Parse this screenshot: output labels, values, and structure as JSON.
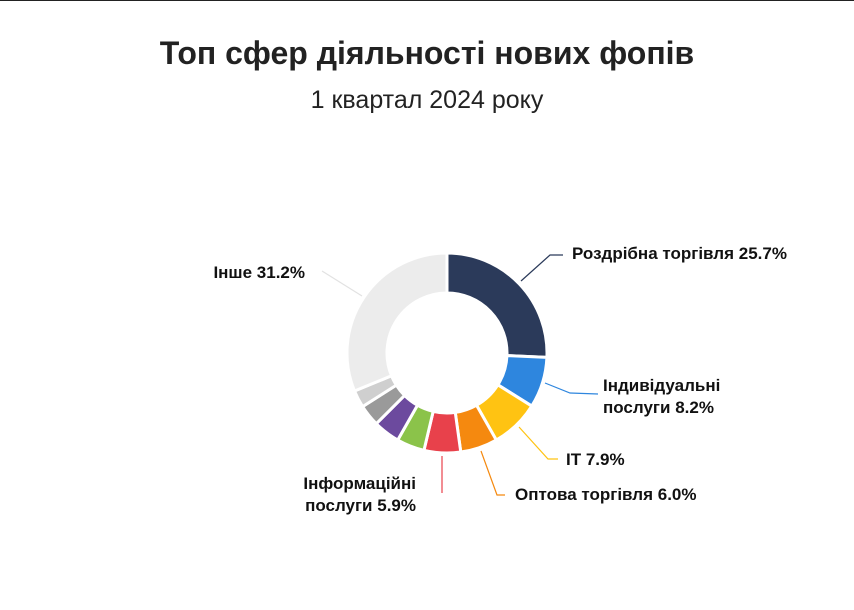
{
  "chart_data": {
    "type": "donut",
    "title": "Топ сфер діяльності нових фопів",
    "subtitle": "1 квартал 2024 року",
    "categories": [
      "Роздрібна торгівля",
      "Індивідуальні послуги",
      "IT",
      "Оптова торгівля",
      "Інформаційні послуги",
      null,
      null,
      null,
      null,
      "Інше"
    ],
    "values": [
      25.7,
      8.2,
      7.9,
      6.0,
      5.9,
      4.5,
      4.3,
      3.5,
      2.8,
      31.2
    ],
    "value_labels": [
      "25.7%",
      "8.2%",
      "7.9%",
      "6.0%",
      "5.9%",
      null,
      null,
      null,
      null,
      "31.2%"
    ],
    "colors": [
      "#2b3a5a",
      "#2e86de",
      "#ffc312",
      "#f5890f",
      "#e8414b",
      "#8bc34a",
      "#6c4a9e",
      "#9a9a9a",
      "#cfcfcf",
      "#ececec"
    ]
  }
}
